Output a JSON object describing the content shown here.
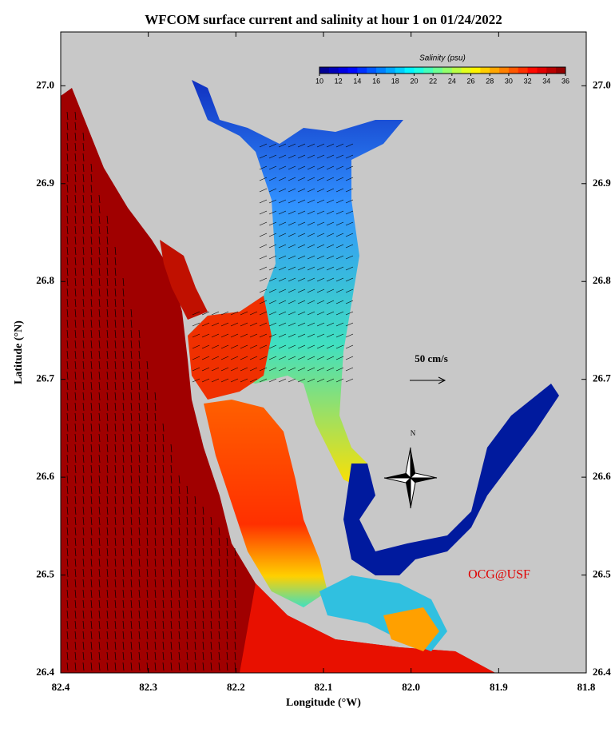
{
  "title": "WFCOM surface current and salinity at hour 1 on 01/24/2022",
  "x_axis": {
    "label": "Longitude (°W)",
    "lim": [
      82.4,
      81.8
    ],
    "ticks": [
      82.4,
      82.3,
      82.2,
      82.1,
      {
        "value": 82,
        "label": "82.0"
      },
      81.9,
      81.8
    ]
  },
  "y_axis": {
    "label": "Latitude (°N)",
    "lim": [
      26.4,
      27.055
    ],
    "ticks": [
      26.4,
      26.5,
      26.6,
      26.7,
      26.8,
      26.9,
      {
        "value": 27,
        "label": "27.0"
      }
    ]
  },
  "colorbar": {
    "label": "Salinity (psu)",
    "lim": [
      10,
      36
    ],
    "ticks": [
      10,
      12,
      14,
      16,
      18,
      20,
      22,
      24,
      26,
      28,
      30,
      32,
      34,
      36
    ]
  },
  "scale_label": "50 cm/s",
  "compass_label": "N",
  "credit": "OCG@USF"
}
